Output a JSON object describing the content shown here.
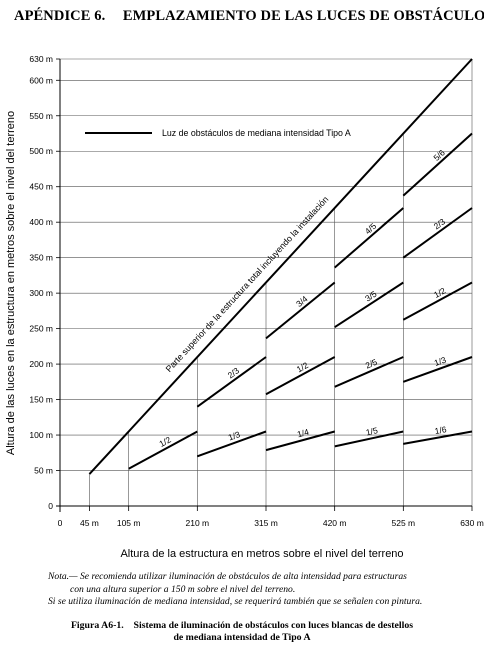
{
  "heading": {
    "appendix": "APÉNDICE 6.",
    "title": "EMPLAZAMIENTO DE LAS LUCES DE OBSTÁCULOS"
  },
  "chart_data": {
    "type": "line",
    "xlabel": "Altura de la estructura en metros sobre el nivel del terreno",
    "ylabel": "Altura de las luces en la estructura en metros sobre el nivel del terreno",
    "xlim": [
      0,
      630
    ],
    "ylim": [
      0,
      630
    ],
    "x_ticks": [
      {
        "value": 0,
        "label": "0"
      },
      {
        "value": 45,
        "label": "45 m"
      },
      {
        "value": 105,
        "label": "105 m"
      },
      {
        "value": 210,
        "label": "210 m"
      },
      {
        "value": 315,
        "label": "315 m"
      },
      {
        "value": 420,
        "label": "420 m"
      },
      {
        "value": 525,
        "label": "525 m"
      },
      {
        "value": 630,
        "label": "630 m"
      }
    ],
    "y_ticks": [
      {
        "value": 0,
        "label": "0"
      },
      {
        "value": 50,
        "label": "50 m"
      },
      {
        "value": 100,
        "label": "100 m"
      },
      {
        "value": 150,
        "label": "150 m"
      },
      {
        "value": 200,
        "label": "200 m"
      },
      {
        "value": 250,
        "label": "250 m"
      },
      {
        "value": 300,
        "label": "300 m"
      },
      {
        "value": 350,
        "label": "350 m"
      },
      {
        "value": 400,
        "label": "400 m"
      },
      {
        "value": 450,
        "label": "450 m"
      },
      {
        "value": 500,
        "label": "500 m"
      },
      {
        "value": 550,
        "label": "550 m"
      },
      {
        "value": 600,
        "label": "600 m"
      },
      {
        "value": 630,
        "label": "630 m"
      }
    ],
    "legend": {
      "label": "Luz de obstáculos de mediana intensidad Tipo A",
      "placement": "top-left"
    },
    "top_line": {
      "label": "Parte superior de la estructura total incluyendo la instalación",
      "x": [
        45,
        630
      ],
      "y": [
        45,
        630
      ]
    },
    "segments": [
      {
        "label": "1/2",
        "x": [
          105,
          210
        ],
        "y": [
          52.5,
          105
        ]
      },
      {
        "label": "2/3",
        "x": [
          210,
          315
        ],
        "y": [
          140,
          210
        ]
      },
      {
        "label": "1/3",
        "x": [
          210,
          315
        ],
        "y": [
          70,
          105
        ]
      },
      {
        "label": "3/4",
        "x": [
          315,
          420
        ],
        "y": [
          236.25,
          315
        ]
      },
      {
        "label": "1/2",
        "x": [
          315,
          420
        ],
        "y": [
          157.5,
          210
        ]
      },
      {
        "label": "1/4",
        "x": [
          315,
          420
        ],
        "y": [
          78.75,
          105
        ]
      },
      {
        "label": "4/5",
        "x": [
          420,
          525
        ],
        "y": [
          336,
          420
        ]
      },
      {
        "label": "3/5",
        "x": [
          420,
          525
        ],
        "y": [
          252,
          315
        ]
      },
      {
        "label": "2/5",
        "x": [
          420,
          525
        ],
        "y": [
          168,
          210
        ]
      },
      {
        "label": "1/5",
        "x": [
          420,
          525
        ],
        "y": [
          84,
          105
        ]
      },
      {
        "label": "5/6",
        "x": [
          525,
          630
        ],
        "y": [
          437.5,
          525
        ]
      },
      {
        "label": "2/3",
        "x": [
          525,
          630
        ],
        "y": [
          350,
          420
        ]
      },
      {
        "label": "1/2",
        "x": [
          525,
          630
        ],
        "y": [
          262.5,
          315
        ]
      },
      {
        "label": "1/3",
        "x": [
          525,
          630
        ],
        "y": [
          175,
          210
        ]
      },
      {
        "label": "1/6",
        "x": [
          525,
          630
        ],
        "y": [
          87.5,
          105
        ]
      }
    ],
    "grid": true
  },
  "note": {
    "line1": "Nota.— Se recomienda utilizar iluminación de obstáculos de alta intensidad para estructuras",
    "line2": "con una altura superior a 150 m sobre el nivel del terreno.",
    "line3": "Si se utiliza iluminación de mediana intensidad, se requerirá también que se señalen con pintura."
  },
  "caption": {
    "line1": "Figura A6-1.    Sistema de iluminación de obstáculos con luces blancas de destellos",
    "line2": "de mediana intensidad de Tipo A"
  }
}
